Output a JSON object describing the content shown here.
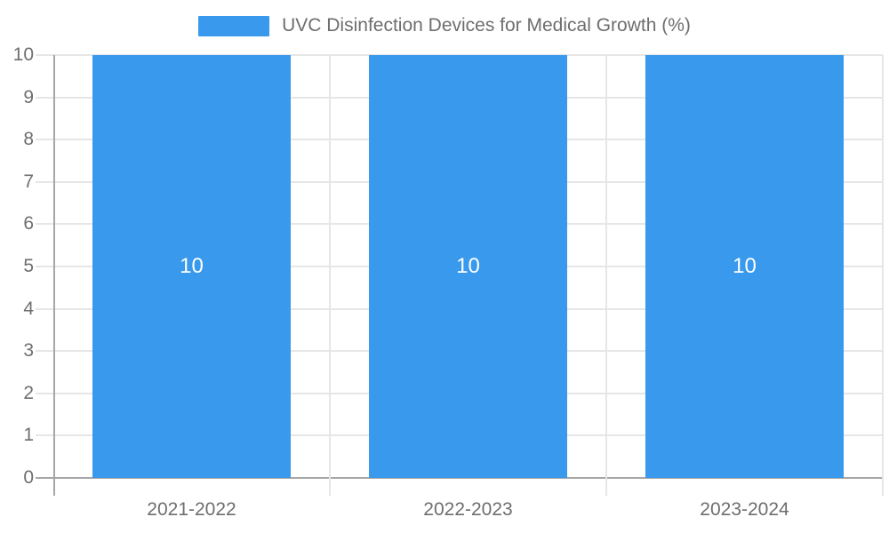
{
  "chart_data": {
    "type": "bar",
    "title": "UVC Disinfection Devices for Medical Growth (%)",
    "legend": {
      "label": "UVC Disinfection Devices for Medical Growth (%)",
      "position": "top"
    },
    "categories": [
      "2021-2022",
      "2022-2023",
      "2023-2024"
    ],
    "series": [
      {
        "name": "UVC Disinfection Devices for Medical Growth (%)",
        "values": [
          10,
          10,
          10
        ],
        "color": "#3999ec"
      }
    ],
    "data_labels": {
      "show": true,
      "values": [
        "10",
        "10",
        "10"
      ],
      "color": "#ffffff"
    },
    "xlabel": "",
    "ylabel": "",
    "ylim": [
      0,
      10
    ],
    "yticks": [
      0,
      1,
      2,
      3,
      4,
      5,
      6,
      7,
      8,
      9,
      10
    ],
    "grid": true
  },
  "style": {
    "background": "#ffffff",
    "bar_color": "#3999ec",
    "grid_color": "#e6e6e6",
    "axis_color": "#a6a6a6",
    "text_color": "#6e6e6e",
    "bar_label_color": "#ffffff"
  }
}
